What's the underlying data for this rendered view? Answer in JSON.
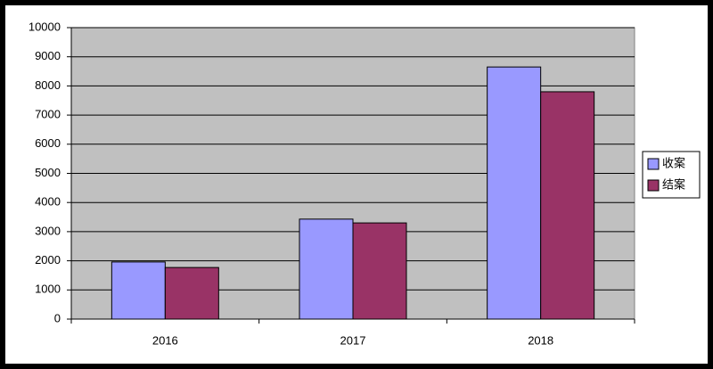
{
  "chart_data": {
    "type": "bar",
    "categories": [
      "2016",
      "2017",
      "2018"
    ],
    "series": [
      {
        "name": "收案",
        "color": "#9999ff",
        "values": [
          1960,
          3430,
          8650
        ]
      },
      {
        "name": "结案",
        "color": "#993366",
        "values": [
          1770,
          3300,
          7800
        ]
      }
    ],
    "ylim": [
      0,
      10000
    ],
    "yticks": [
      0,
      1000,
      2000,
      3000,
      4000,
      5000,
      6000,
      7000,
      8000,
      9000,
      10000
    ],
    "grid": true,
    "legend": "right"
  }
}
